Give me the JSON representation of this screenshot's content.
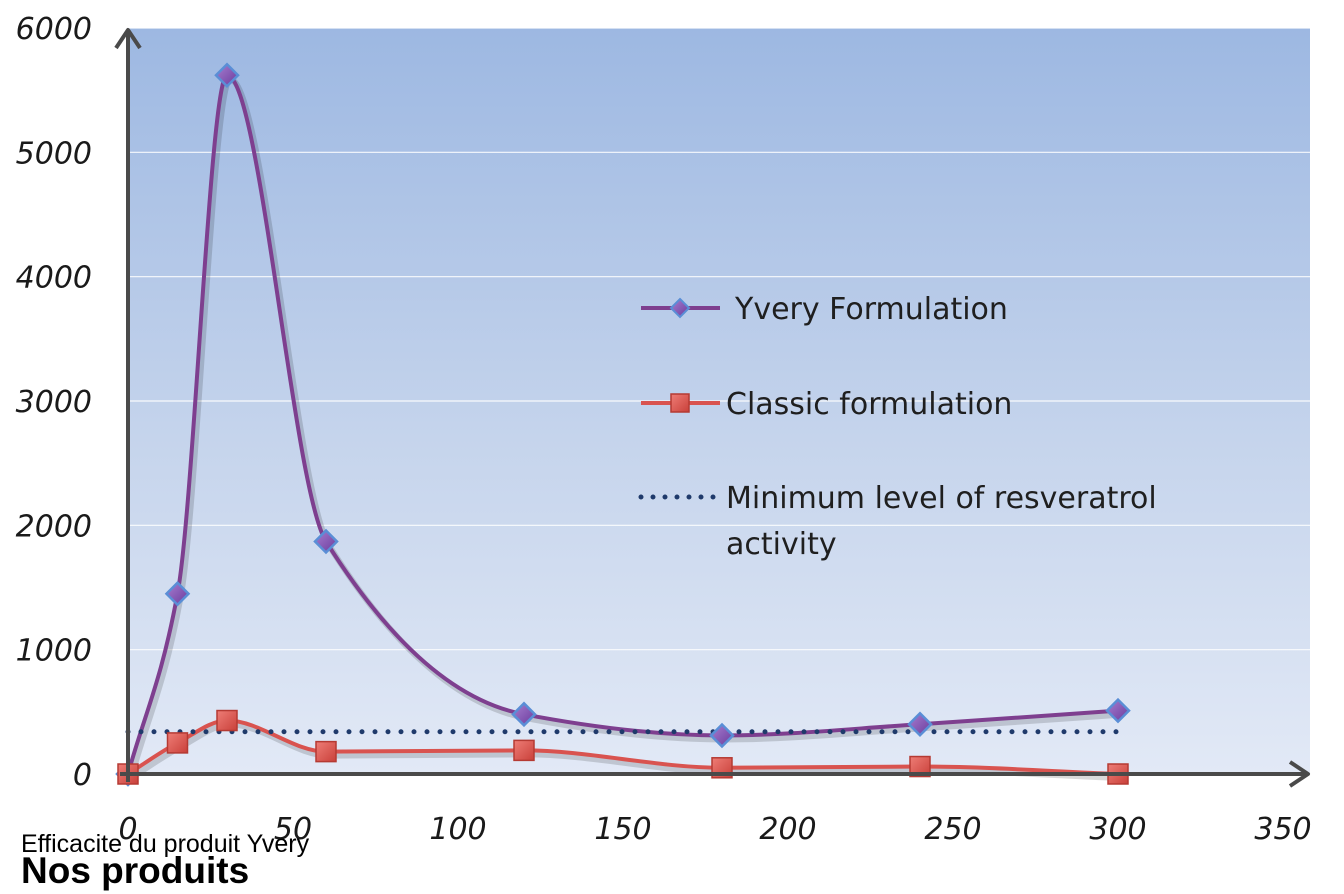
{
  "chart_data": {
    "type": "line",
    "x": [
      0,
      15,
      30,
      60,
      120,
      180,
      240,
      300
    ],
    "series": [
      {
        "name": "Yvery Formulation",
        "values": [
          0,
          1450,
          5620,
          1870,
          480,
          310,
          400,
          510
        ],
        "color": "#7e3f8f",
        "marker": "diamond"
      },
      {
        "name": "Classic formulation",
        "values": [
          0,
          250,
          430,
          180,
          190,
          50,
          60,
          0
        ],
        "color": "#d9534f",
        "marker": "square"
      },
      {
        "name": "Minimum level of resverotrol activity",
        "constant": 340,
        "x_range": [
          0,
          300
        ],
        "color": "#1f3a6b",
        "style": "dotted"
      }
    ],
    "legend_labels": [
      "Yvery Formulation",
      "Classic formulation",
      "Minimum level of resveratrol activity"
    ],
    "xlim": [
      0,
      350
    ],
    "ylim": [
      0,
      6000
    ],
    "x_ticks": [
      0,
      50,
      100,
      150,
      200,
      250,
      300,
      350
    ],
    "y_ticks": [
      0,
      1000,
      2000,
      3000,
      4000,
      5000,
      6000
    ],
    "grid": true,
    "legend_position": "right",
    "title": "",
    "xlabel": "",
    "ylabel": ""
  },
  "caption": "Efficacite du produit Yvery",
  "section_heading": "Nos produits"
}
